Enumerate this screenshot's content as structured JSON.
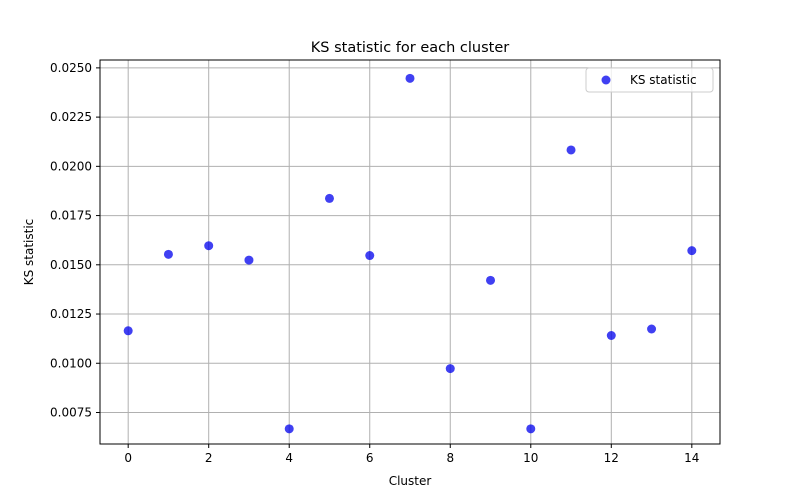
{
  "chart_data": {
    "type": "scatter",
    "title": "KS statistic for each cluster",
    "xlabel": "Cluster",
    "ylabel": "KS statistic",
    "x": [
      0,
      1,
      2,
      3,
      4,
      5,
      6,
      7,
      8,
      9,
      10,
      11,
      12,
      13,
      14
    ],
    "series": [
      {
        "name": "KS statistic",
        "color": "#0000ee",
        "values": [
          0.01165,
          0.01553,
          0.01597,
          0.01524,
          0.00667,
          0.01837,
          0.01547,
          0.02447,
          0.00973,
          0.01421,
          0.00667,
          0.02083,
          0.01141,
          0.01174,
          0.01572
        ]
      }
    ],
    "xlim": [
      -0.7,
      14.7
    ],
    "ylim": [
      0.0059,
      0.0254
    ],
    "xticks": [
      0,
      2,
      4,
      6,
      8,
      10,
      12,
      14
    ],
    "xtick_labels": [
      "0",
      "2",
      "4",
      "6",
      "8",
      "10",
      "12",
      "14"
    ],
    "yticks": [
      0.0075,
      0.01,
      0.0125,
      0.015,
      0.0175,
      0.02,
      0.0225,
      0.025
    ],
    "ytick_labels": [
      "0.0075",
      "0.0100",
      "0.0125",
      "0.0150",
      "0.0175",
      "0.0200",
      "0.0225",
      "0.0250"
    ],
    "grid": true,
    "legend_position": "top-right"
  }
}
